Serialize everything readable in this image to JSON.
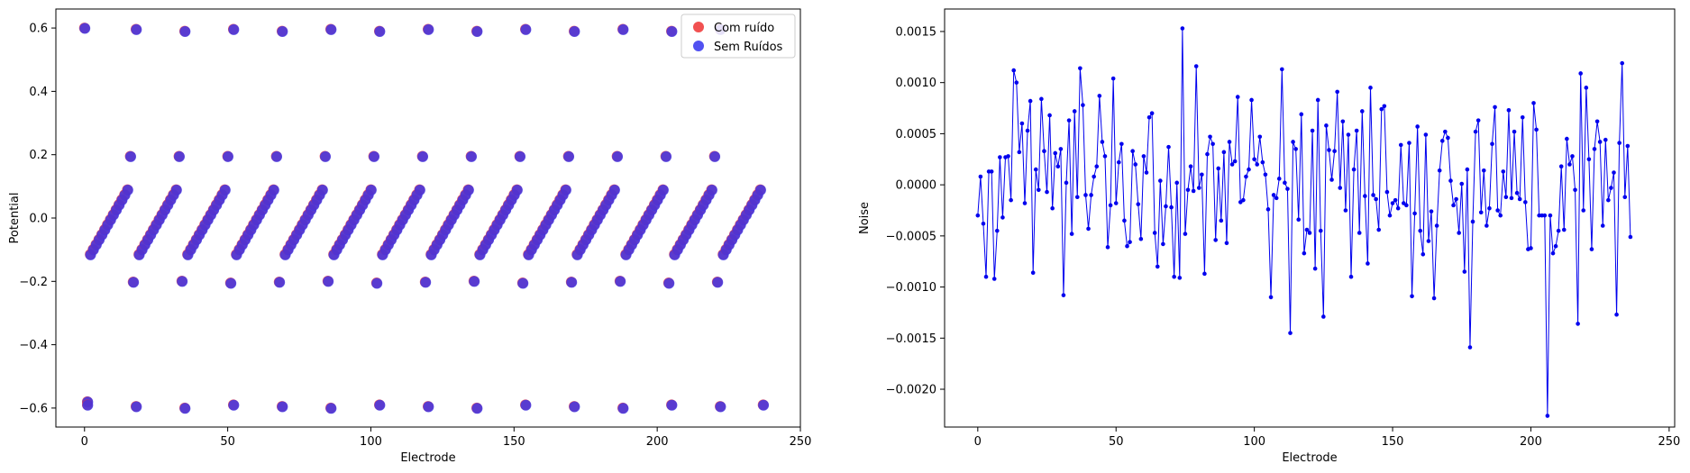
{
  "chart_data": [
    {
      "type": "scatter",
      "title": "",
      "xlabel": "Electrode",
      "ylabel": "Potential",
      "xlim": [
        -10,
        250
      ],
      "ylim": [
        -0.66,
        0.66
      ],
      "xticks": [
        0,
        50,
        100,
        150,
        200,
        250
      ],
      "yticks": [
        -0.6,
        -0.4,
        -0.2,
        0.0,
        0.2,
        0.4,
        0.6
      ],
      "ytick_labels": [
        "−0.6",
        "−0.4",
        "−0.2",
        "0.0",
        "0.2",
        "0.4",
        "0.6"
      ],
      "grid": false,
      "legend_position": "top-right",
      "series": [
        {
          "name": "Com ruído",
          "color": "#ee3333"
        },
        {
          "name": "Sem Ruídos",
          "color": "#3333ee"
        }
      ],
      "pattern": {
        "channels_per_group": 17,
        "groups": 14,
        "first_top_value": 0.6,
        "last_bottom_value": -0.59,
        "other_top_value": 0.195,
        "other_bottom_value": -0.195,
        "ramp_start": -0.115,
        "ramp_end": 0.105
      }
    },
    {
      "type": "line",
      "title": "",
      "xlabel": "Electrode",
      "ylabel": "Noise",
      "xlim": [
        -12,
        252
      ],
      "ylim": [
        -0.00237,
        0.00172
      ],
      "xticks": [
        0,
        50,
        100,
        150,
        200,
        250
      ],
      "yticks": [
        -0.002,
        -0.0015,
        -0.001,
        -0.0005,
        0.0,
        0.0005,
        0.001,
        0.0015
      ],
      "ytick_labels": [
        "−0.0020",
        "−0.0015",
        "−0.0010",
        "−0.0005",
        "0.0000",
        "0.0005",
        "0.0010",
        "0.0015"
      ],
      "grid": false,
      "color": "#0000ee",
      "values": [
        -0.0003,
        8e-05,
        -0.00038,
        -0.0009,
        0.00013,
        0.00013,
        -0.00092,
        -0.00045,
        0.00027,
        -0.00032,
        0.00027,
        0.00028,
        -0.00015,
        0.00112,
        0.001,
        0.00032,
        0.0006,
        -0.00018,
        0.00053,
        0.00082,
        -0.00086,
        0.00015,
        -5e-05,
        0.00084,
        0.00033,
        -7e-05,
        0.00068,
        -0.00023,
        0.00031,
        0.00018,
        0.00035,
        -0.00108,
        2e-05,
        0.00063,
        -0.00048,
        0.00072,
        -0.00012,
        0.00114,
        0.00078,
        -0.0001,
        -0.00043,
        -0.0001,
        8e-05,
        0.00018,
        0.00087,
        0.00042,
        0.00028,
        -0.00061,
        -0.0002,
        0.00104,
        -0.00018,
        0.00022,
        0.0004,
        -0.00035,
        -0.0006,
        -0.00056,
        0.00033,
        0.0002,
        -0.00019,
        -0.00053,
        0.00028,
        0.00012,
        0.00066,
        0.0007,
        -0.00047,
        -0.0008,
        4e-05,
        -0.00058,
        -0.00021,
        0.00037,
        -0.00022,
        -0.0009,
        2e-05,
        -0.00091,
        0.00153,
        -0.00048,
        -5e-05,
        0.00018,
        -6e-05,
        0.00116,
        -3e-05,
        0.0001,
        -0.00087,
        0.0003,
        0.00047,
        0.0004,
        -0.00054,
        0.00016,
        -0.00035,
        0.00032,
        -0.00057,
        0.00042,
        0.0002,
        0.00023,
        0.00086,
        -0.00017,
        -0.00015,
        8e-05,
        0.00015,
        0.00083,
        0.00025,
        0.0002,
        0.00047,
        0.00022,
        0.0001,
        -0.00024,
        -0.0011,
        -0.0001,
        -0.00013,
        6e-05,
        0.00113,
        2e-05,
        -4e-05,
        -0.00145,
        0.00042,
        0.00035,
        -0.00034,
        0.00069,
        -0.00067,
        -0.00044,
        -0.00047,
        0.00053,
        -0.00082,
        0.00083,
        -0.00045,
        -0.00129,
        0.00058,
        0.00034,
        5e-05,
        0.00033,
        0.00091,
        -3e-05,
        0.00062,
        -0.00025,
        0.00049,
        -0.0009,
        0.00015,
        0.00053,
        -0.00047,
        0.00072,
        -0.00011,
        -0.00077,
        0.00095,
        -0.0001,
        -0.00014,
        -0.00044,
        0.00074,
        0.00077,
        -7e-05,
        -0.0003,
        -0.00018,
        -0.00015,
        -0.00023,
        0.00039,
        -0.00018,
        -0.0002,
        0.00041,
        -0.00109,
        -0.00028,
        0.00057,
        -0.00045,
        -0.00068,
        0.00049,
        -0.00055,
        -0.00026,
        -0.00111,
        -0.0004,
        0.00014,
        0.00043,
        0.00052,
        0.00046,
        4e-05,
        -0.0002,
        -0.00014,
        -0.00047,
        1e-05,
        -0.00085,
        0.00015,
        -0.00159,
        -0.00036,
        0.00052,
        0.00063,
        -0.00027,
        0.00014,
        -0.0004,
        -0.00023,
        0.0004,
        0.00076,
        -0.00025,
        -0.0003,
        0.00013,
        -0.00012,
        0.00073,
        -0.00013,
        0.00052,
        -8e-05,
        -0.00014,
        0.00066,
        -0.00017,
        -0.00063,
        -0.00062,
        0.0008,
        0.00054,
        -0.0003,
        -0.0003,
        -0.0003,
        -0.00226,
        -0.0003,
        -0.00067,
        -0.0006,
        -0.00045,
        0.00018,
        -0.00044,
        0.00045,
        0.0002,
        0.00028,
        -5e-05,
        -0.00136,
        0.00109,
        -0.00025,
        0.00095,
        0.00025,
        -0.00063,
        0.00035,
        0.00062,
        0.00042,
        -0.0004,
        0.00044,
        -0.00015,
        -3e-05,
        0.00012,
        -0.00127,
        0.00041,
        0.00119,
        -0.00012,
        0.00038,
        -0.00051
      ]
    }
  ]
}
